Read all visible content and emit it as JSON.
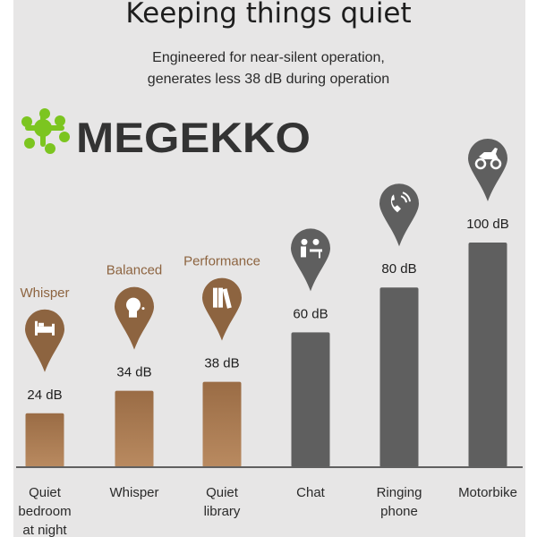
{
  "chart_data": {
    "type": "bar",
    "title": "Keeping things quiet",
    "subtitle": [
      "Engineered for near-silent operation,",
      "generates less 38 dB during operation"
    ],
    "categories": [
      [
        "Quiet",
        "bedroom",
        "at night"
      ],
      [
        "Whisper"
      ],
      [
        "Quiet",
        "library"
      ],
      [
        "Chat"
      ],
      [
        "Ringing",
        "phone"
      ],
      [
        "Motorbike"
      ]
    ],
    "values": [
      24,
      34,
      38,
      60,
      80,
      100
    ],
    "value_labels": [
      "24 dB",
      "34 dB",
      "38 dB",
      "60 dB",
      "80 dB",
      "100 dB"
    ],
    "mode_labels": [
      "Whisper",
      "Balanced",
      "Performance",
      "",
      "",
      ""
    ],
    "icons": [
      "bed-icon",
      "whispering-person-icon",
      "books-icon",
      "conversation-icon",
      "ringing-phone-icon",
      "motorbike-icon"
    ],
    "ylim": [
      0,
      100
    ],
    "grid": false,
    "colors": {
      "product": "#a87a52",
      "product_dark": "#8d6440",
      "reference": "#5f5f5f",
      "baseline": "#606060",
      "mode_label": "#8d6440"
    }
  },
  "watermark": {
    "text": "MEGEKKO",
    "color": "#333333",
    "logo_color": "#7cc520"
  }
}
